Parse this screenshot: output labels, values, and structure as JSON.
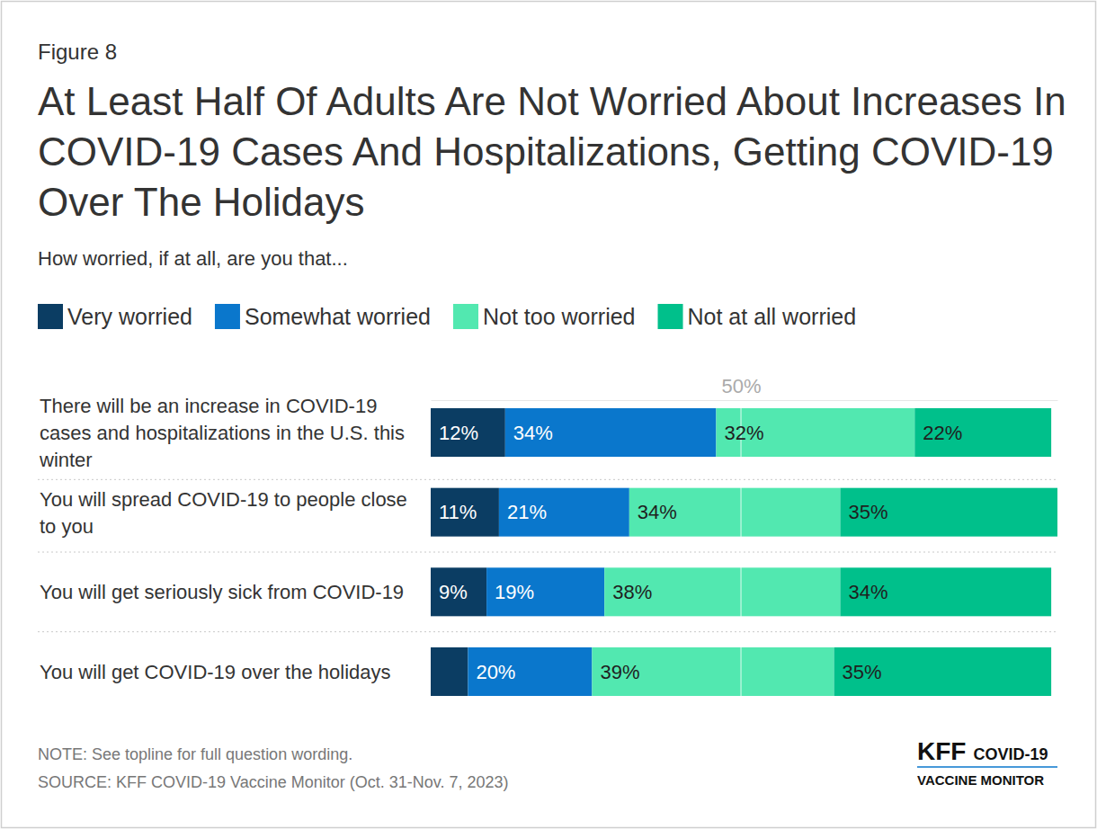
{
  "chart_data": {
    "type": "bar",
    "orientation": "horizontal",
    "stacked": true,
    "data_labels": true,
    "grid": true,
    "legend": "top",
    "figure_label": "Figure 8",
    "title": "At Least Half Of Adults Are Not Worried About Increases In COVID-19 Cases And Hospitalizations, Getting COVID-19 Over The Holidays",
    "subtitle": "How worried, if at all, are you that...",
    "categories": [
      "There will be an increase in COVID-19 cases and hospitalizations in the U.S. this winter",
      "You will spread COVID-19 to people close to you",
      "You will get seriously sick from COVID-19",
      "You will get COVID-19 over the holidays"
    ],
    "series": [
      {
        "name": "Very worried",
        "color": "#0b3d63",
        "values": [
          12,
          11,
          9,
          6
        ],
        "value_labels": [
          "12%",
          "11%",
          "9%",
          null
        ]
      },
      {
        "name": "Somewhat worried",
        "color": "#0a77cc",
        "values": [
          34,
          21,
          19,
          20
        ],
        "value_labels": [
          "34%",
          "21%",
          "19%",
          "20%"
        ]
      },
      {
        "name": "Not too worried",
        "color": "#52e8b0",
        "values": [
          32,
          34,
          38,
          39
        ],
        "value_labels": [
          "32%",
          "34%",
          "38%",
          "39%"
        ]
      },
      {
        "name": "Not at all worried",
        "color": "#00c08b",
        "values": [
          22,
          35,
          34,
          35
        ],
        "value_labels": [
          "22%",
          "35%",
          "34%",
          "35%"
        ]
      }
    ],
    "xlim": [
      0,
      101
    ],
    "xticks": [
      {
        "value": 50,
        "label": "50%"
      }
    ],
    "note": "NOTE: See topline for full question wording.",
    "source": "SOURCE: KFF COVID-19 Vaccine Monitor (Oct. 31-Nov. 7, 2023)",
    "logo": {
      "name": "KFF",
      "tag": "COVID-19",
      "sub": "VACCINE MONITOR"
    }
  }
}
